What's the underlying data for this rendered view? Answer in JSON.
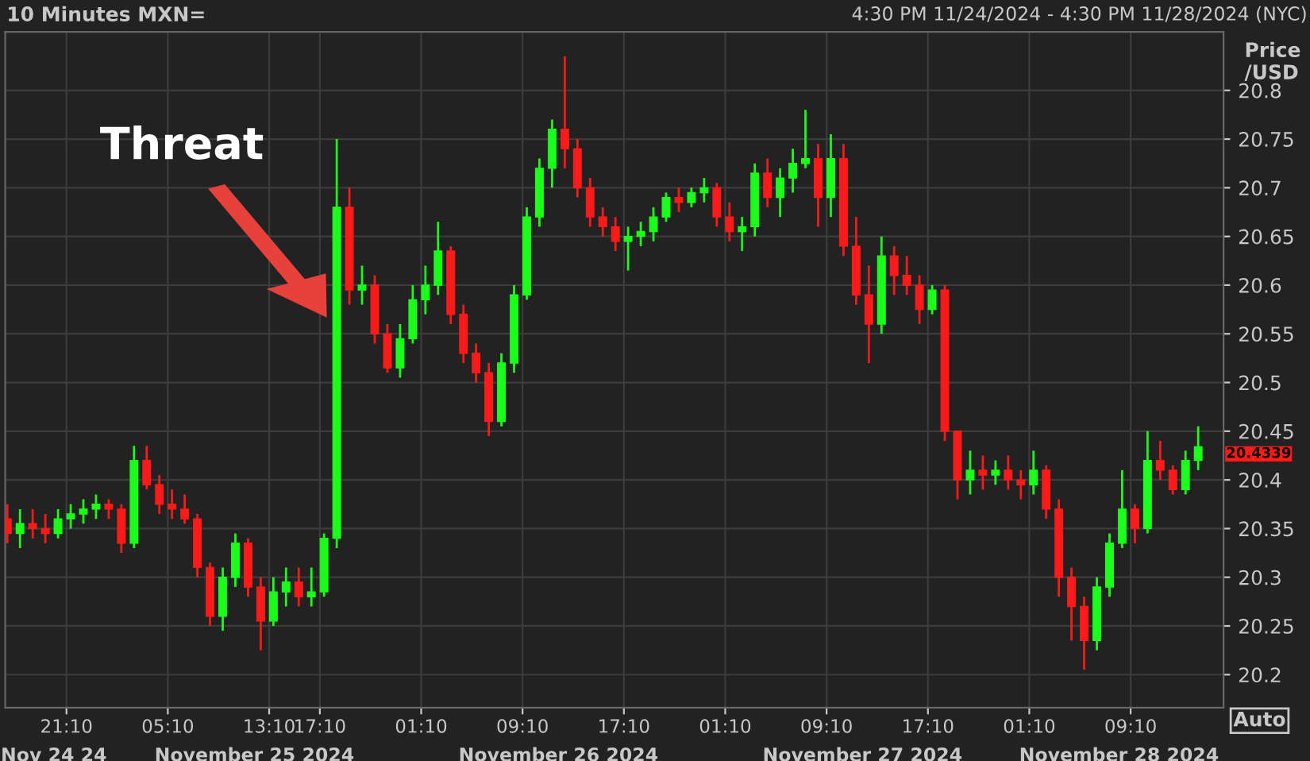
{
  "chart_data": {
    "type": "candlestick",
    "title": "10 Minutes MXN=",
    "subtitle": "4:30 PM 11/24/2024 - 4:30 PM 11/28/2024 (NYC)",
    "ylabel": "Price /USD",
    "x": [
      "2024-11-24T16:30",
      "2024-11-24T17:30",
      "2024-11-24T18:30",
      "2024-11-24T19:30",
      "2024-11-24T20:30",
      "2024-11-24T21:30",
      "2024-11-24T22:30",
      "2024-11-24T23:30",
      "2024-11-25T00:30",
      "2024-11-25T01:30",
      "2024-11-25T02:30",
      "2024-11-25T03:30",
      "2024-11-25T04:30",
      "2024-11-25T05:30",
      "2024-11-25T06:30",
      "2024-11-25T07:30",
      "2024-11-25T08:30",
      "2024-11-25T09:30",
      "2024-11-25T10:30",
      "2024-11-25T11:30",
      "2024-11-25T12:30",
      "2024-11-25T13:30",
      "2024-11-25T14:30",
      "2024-11-25T15:30",
      "2024-11-25T16:30",
      "2024-11-25T17:30",
      "2024-11-25T18:30",
      "2024-11-25T19:30",
      "2024-11-25T20:30",
      "2024-11-25T21:30",
      "2024-11-25T22:30",
      "2024-11-25T23:30",
      "2024-11-26T00:30",
      "2024-11-26T01:30",
      "2024-11-26T02:30",
      "2024-11-26T03:30",
      "2024-11-26T04:30",
      "2024-11-26T05:30",
      "2024-11-26T06:30",
      "2024-11-26T07:30",
      "2024-11-26T08:30",
      "2024-11-26T09:30",
      "2024-11-26T10:30",
      "2024-11-26T11:30",
      "2024-11-26T12:30",
      "2024-11-26T13:30",
      "2024-11-26T14:30",
      "2024-11-26T15:30",
      "2024-11-26T16:30",
      "2024-11-26T17:30",
      "2024-11-26T18:30",
      "2024-11-26T19:30",
      "2024-11-26T20:30",
      "2024-11-26T21:30",
      "2024-11-26T22:30",
      "2024-11-26T23:30",
      "2024-11-27T00:30",
      "2024-11-27T01:30",
      "2024-11-27T02:30",
      "2024-11-27T03:30",
      "2024-11-27T04:30",
      "2024-11-27T05:30",
      "2024-11-27T06:30",
      "2024-11-27T07:30",
      "2024-11-27T08:30",
      "2024-11-27T09:30",
      "2024-11-27T10:30",
      "2024-11-27T11:30",
      "2024-11-27T12:30",
      "2024-11-27T13:30",
      "2024-11-27T14:30",
      "2024-11-27T15:30",
      "2024-11-27T16:30",
      "2024-11-27T17:30",
      "2024-11-27T18:30",
      "2024-11-27T19:30",
      "2024-11-27T20:30",
      "2024-11-27T21:30",
      "2024-11-27T22:30",
      "2024-11-27T23:30",
      "2024-11-28T00:30",
      "2024-11-28T01:30",
      "2024-11-28T02:30",
      "2024-11-28T03:30",
      "2024-11-28T04:30",
      "2024-11-28T05:30",
      "2024-11-28T06:30",
      "2024-11-28T07:30",
      "2024-11-28T08:30",
      "2024-11-28T09:30",
      "2024-11-28T10:30",
      "2024-11-28T11:30",
      "2024-11-28T12:30",
      "2024-11-28T13:30",
      "2024-11-28T14:30"
    ],
    "ohlc": [
      [
        20.36,
        20.375,
        20.335,
        20.345
      ],
      [
        20.345,
        20.37,
        20.33,
        20.355
      ],
      [
        20.355,
        20.37,
        20.34,
        20.35
      ],
      [
        20.35,
        20.365,
        20.335,
        20.345
      ],
      [
        20.345,
        20.37,
        20.34,
        20.36
      ],
      [
        20.36,
        20.375,
        20.35,
        20.365
      ],
      [
        20.365,
        20.38,
        20.355,
        20.37
      ],
      [
        20.37,
        20.385,
        20.36,
        20.375
      ],
      [
        20.375,
        20.38,
        20.36,
        20.37
      ],
      [
        20.37,
        20.375,
        20.325,
        20.335
      ],
      [
        20.335,
        20.435,
        20.33,
        20.42
      ],
      [
        20.42,
        20.435,
        20.39,
        20.395
      ],
      [
        20.395,
        20.405,
        20.365,
        20.375
      ],
      [
        20.375,
        20.39,
        20.36,
        20.37
      ],
      [
        20.37,
        20.385,
        20.355,
        20.36
      ],
      [
        20.36,
        20.365,
        20.3,
        20.31
      ],
      [
        20.31,
        20.315,
        20.25,
        20.26
      ],
      [
        20.26,
        20.31,
        20.245,
        20.3
      ],
      [
        20.3,
        20.345,
        20.29,
        20.335
      ],
      [
        20.335,
        20.34,
        20.28,
        20.29
      ],
      [
        20.29,
        20.3,
        20.225,
        20.255
      ],
      [
        20.255,
        20.3,
        20.25,
        20.285
      ],
      [
        20.285,
        20.31,
        20.27,
        20.295
      ],
      [
        20.295,
        20.31,
        20.27,
        20.28
      ],
      [
        20.28,
        20.31,
        20.27,
        20.285
      ],
      [
        20.285,
        20.345,
        20.28,
        20.34
      ],
      [
        20.34,
        20.75,
        20.33,
        20.68
      ],
      [
        20.68,
        20.7,
        20.58,
        20.595
      ],
      [
        20.595,
        20.62,
        20.58,
        20.6
      ],
      [
        20.6,
        20.61,
        20.54,
        20.55
      ],
      [
        20.55,
        20.56,
        20.51,
        20.515
      ],
      [
        20.515,
        20.56,
        20.505,
        20.545
      ],
      [
        20.545,
        20.6,
        20.54,
        20.585
      ],
      [
        20.585,
        20.62,
        20.57,
        20.6
      ],
      [
        20.6,
        20.665,
        20.59,
        20.635
      ],
      [
        20.635,
        20.64,
        20.56,
        20.57
      ],
      [
        20.57,
        20.58,
        20.52,
        20.53
      ],
      [
        20.53,
        20.54,
        20.5,
        20.51
      ],
      [
        20.51,
        20.52,
        20.445,
        20.46
      ],
      [
        20.46,
        20.53,
        20.455,
        20.52
      ],
      [
        20.52,
        20.6,
        20.51,
        20.59
      ],
      [
        20.59,
        20.68,
        20.585,
        20.67
      ],
      [
        20.67,
        20.73,
        20.66,
        20.72
      ],
      [
        20.72,
        20.77,
        20.7,
        20.76
      ],
      [
        20.76,
        20.835,
        20.72,
        20.74
      ],
      [
        20.74,
        20.75,
        20.69,
        20.7
      ],
      [
        20.7,
        20.71,
        20.66,
        20.67
      ],
      [
        20.67,
        20.68,
        20.65,
        20.66
      ],
      [
        20.66,
        20.67,
        20.635,
        20.645
      ],
      [
        20.645,
        20.66,
        20.615,
        20.65
      ],
      [
        20.65,
        20.665,
        20.64,
        20.655
      ],
      [
        20.655,
        20.68,
        20.645,
        20.67
      ],
      [
        20.67,
        20.695,
        20.665,
        20.69
      ],
      [
        20.69,
        20.7,
        20.675,
        20.685
      ],
      [
        20.685,
        20.7,
        20.68,
        20.695
      ],
      [
        20.695,
        20.71,
        20.685,
        20.7
      ],
      [
        20.7,
        20.705,
        20.66,
        20.67
      ],
      [
        20.67,
        20.685,
        20.645,
        20.655
      ],
      [
        20.655,
        20.67,
        20.635,
        20.66
      ],
      [
        20.66,
        20.725,
        20.65,
        20.715
      ],
      [
        20.715,
        20.73,
        20.68,
        20.69
      ],
      [
        20.69,
        20.72,
        20.67,
        20.71
      ],
      [
        20.71,
        20.74,
        20.695,
        20.725
      ],
      [
        20.725,
        20.78,
        20.72,
        20.73
      ],
      [
        20.73,
        20.745,
        20.66,
        20.69
      ],
      [
        20.69,
        20.755,
        20.67,
        20.73
      ],
      [
        20.73,
        20.745,
        20.63,
        20.64
      ],
      [
        20.64,
        20.67,
        20.58,
        20.59
      ],
      [
        20.59,
        20.62,
        20.52,
        20.56
      ],
      [
        20.56,
        20.65,
        20.55,
        20.63
      ],
      [
        20.63,
        20.64,
        20.59,
        20.61
      ],
      [
        20.61,
        20.63,
        20.59,
        20.6
      ],
      [
        20.6,
        20.61,
        20.56,
        20.575
      ],
      [
        20.575,
        20.6,
        20.57,
        20.595
      ],
      [
        20.595,
        20.6,
        20.44,
        20.45
      ],
      [
        20.45,
        20.45,
        20.38,
        20.4
      ],
      [
        20.4,
        20.43,
        20.385,
        20.41
      ],
      [
        20.41,
        20.425,
        20.39,
        20.405
      ],
      [
        20.405,
        20.42,
        20.395,
        20.41
      ],
      [
        20.41,
        20.425,
        20.39,
        20.4
      ],
      [
        20.4,
        20.41,
        20.38,
        20.395
      ],
      [
        20.395,
        20.43,
        20.385,
        20.41
      ],
      [
        20.41,
        20.415,
        20.36,
        20.37
      ],
      [
        20.37,
        20.38,
        20.28,
        20.3
      ],
      [
        20.3,
        20.31,
        20.235,
        20.27
      ],
      [
        20.27,
        20.28,
        20.205,
        20.235
      ],
      [
        20.235,
        20.3,
        20.225,
        20.29
      ],
      [
        20.29,
        20.345,
        20.28,
        20.335
      ],
      [
        20.335,
        20.41,
        20.33,
        20.37
      ],
      [
        20.37,
        20.375,
        20.335,
        20.35
      ],
      [
        20.35,
        20.45,
        20.345,
        20.42
      ],
      [
        20.42,
        20.44,
        20.4,
        20.41
      ],
      [
        20.41,
        20.415,
        20.385,
        20.39
      ],
      [
        20.39,
        20.43,
        20.385,
        20.42
      ],
      [
        20.42,
        20.455,
        20.41,
        20.4339
      ]
    ],
    "colors": [
      "#ff1a1a",
      "#1aff1a",
      "#ff1a1a",
      "#ff1a1a",
      "#1aff1a",
      "#1aff1a",
      "#1aff1a",
      "#1aff1a",
      "#ff1a1a",
      "#ff1a1a",
      "#1aff1a",
      "#ff1a1a",
      "#ff1a1a",
      "#ff1a1a",
      "#ff1a1a",
      "#ff1a1a",
      "#ff1a1a",
      "#1aff1a",
      "#1aff1a",
      "#ff1a1a",
      "#ff1a1a",
      "#1aff1a",
      "#1aff1a",
      "#ff1a1a",
      "#1aff1a",
      "#1aff1a",
      "#1aff1a",
      "#ff1a1a",
      "#1aff1a",
      "#ff1a1a",
      "#ff1a1a",
      "#1aff1a",
      "#1aff1a",
      "#1aff1a",
      "#1aff1a",
      "#ff1a1a",
      "#ff1a1a",
      "#ff1a1a",
      "#ff1a1a",
      "#1aff1a",
      "#1aff1a",
      "#1aff1a",
      "#1aff1a",
      "#1aff1a",
      "#ff1a1a",
      "#ff1a1a",
      "#ff1a1a",
      "#ff1a1a",
      "#ff1a1a",
      "#1aff1a",
      "#1aff1a",
      "#1aff1a",
      "#1aff1a",
      "#ff1a1a",
      "#1aff1a",
      "#1aff1a",
      "#ff1a1a",
      "#ff1a1a",
      "#1aff1a",
      "#1aff1a",
      "#ff1a1a",
      "#1aff1a",
      "#1aff1a",
      "#1aff1a",
      "#ff1a1a",
      "#1aff1a",
      "#ff1a1a",
      "#ff1a1a",
      "#ff1a1a",
      "#1aff1a",
      "#ff1a1a",
      "#ff1a1a",
      "#ff1a1a",
      "#1aff1a",
      "#ff1a1a",
      "#ff1a1a",
      "#1aff1a",
      "#ff1a1a",
      "#1aff1a",
      "#ff1a1a",
      "#ff1a1a",
      "#1aff1a",
      "#ff1a1a",
      "#ff1a1a",
      "#ff1a1a",
      "#ff1a1a",
      "#1aff1a",
      "#1aff1a",
      "#1aff1a",
      "#ff1a1a",
      "#1aff1a",
      "#ff1a1a",
      "#ff1a1a",
      "#1aff1a",
      "#1aff1a"
    ],
    "x2lim": [
      "2024-11-24T16:20",
      "2024-11-28T16:30"
    ],
    "x2ticks": [
      {
        "value": "2024-11-24T20:10",
        "label": "Nov 24 24"
      },
      {
        "value": "2024-11-25T12:00",
        "label": "November 25 2024"
      },
      {
        "value": "2024-11-26T12:00",
        "label": "November 26 2024"
      },
      {
        "value": "2024-11-27T12:00",
        "label": "November 27 2024"
      },
      {
        "value": "2024-11-28T08:15",
        "label": "November 28 2024"
      }
    ],
    "xlim": [
      "2024-11-24T16:20",
      "2024-11-28T16:30"
    ],
    "xticks": [
      {
        "value": "2024-11-24T21:10",
        "label": "21:10"
      },
      {
        "value": "2024-11-25T05:10",
        "label": "05:10"
      },
      {
        "value": "2024-11-25T13:10",
        "label": "13:10"
      },
      {
        "value": "2024-11-25T17:10",
        "label": "17:10"
      },
      {
        "value": "2024-11-26T01:10",
        "label": "01:10"
      },
      {
        "value": "2024-11-26T09:10",
        "label": "09:10"
      },
      {
        "value": "2024-11-26T17:10",
        "label": "17:10"
      },
      {
        "value": "2024-11-27T01:10",
        "label": "01:10"
      },
      {
        "value": "2024-11-27T09:10",
        "label": "09:10"
      },
      {
        "value": "2024-11-27T17:10",
        "label": "17:10"
      },
      {
        "value": "2024-11-28T01:10",
        "label": "01:10"
      },
      {
        "value": "2024-11-28T09:10",
        "label": "09:10"
      }
    ],
    "ylim": [
      20.166,
      20.86
    ],
    "yticks": [
      20.2,
      20.25,
      20.3,
      20.35,
      20.4,
      20.45,
      20.5,
      20.55,
      20.6,
      20.65,
      20.7,
      20.75,
      20.8
    ],
    "grid": true,
    "annotations": [
      "Threat",
      "20.4339",
      "Auto"
    ]
  }
}
